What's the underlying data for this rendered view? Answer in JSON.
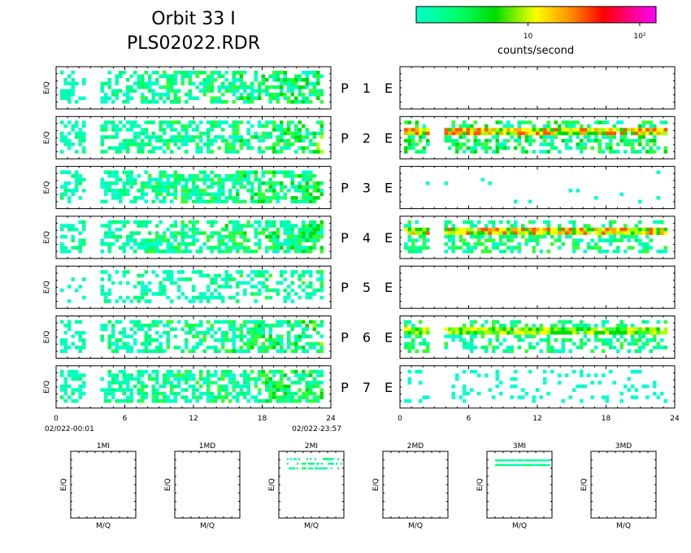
{
  "title": {
    "line1": "Orbit 33 I",
    "line2": "PLS02022.RDR"
  },
  "colorbar": {
    "label": "counts/second",
    "ticks": [
      {
        "value": 10,
        "label": "10"
      },
      {
        "value": 100,
        "label": "10²"
      }
    ],
    "range": [
      1,
      140
    ],
    "scale": "log",
    "colors": [
      "#00ffcc",
      "#00ff66",
      "#00dd00",
      "#ffff00",
      "#ff8800",
      "#ff0000",
      "#ff0077",
      "#ff00ff"
    ]
  },
  "panel_ylabel": "E/Q",
  "bottom_ylabel": "E/Q",
  "bottom_xlabel": "M/Q",
  "time_axis": {
    "ticks": [
      "0",
      "6",
      "12",
      "18",
      "24"
    ],
    "start_label": "02/022-00:01",
    "end_label": "02/022-23:57"
  },
  "chart_data": [
    {
      "type": "heatmap",
      "channel": "P",
      "number": "1",
      "left": {
        "level": 3,
        "density": 0.55,
        "band": null
      },
      "right": {
        "level": 0,
        "density": 0,
        "band": null
      }
    },
    {
      "type": "heatmap",
      "channel": "P",
      "number": "2",
      "left": {
        "level": 3,
        "density": 0.58,
        "band": null
      },
      "right": {
        "level": 6,
        "density": 0.7,
        "band": "high"
      }
    },
    {
      "type": "heatmap",
      "channel": "P",
      "number": "3",
      "left": {
        "level": 3,
        "density": 0.6,
        "band": null
      },
      "right": {
        "level": 1,
        "density": 0.02,
        "band": null
      }
    },
    {
      "type": "heatmap",
      "channel": "P",
      "number": "4",
      "left": {
        "level": 3,
        "density": 0.6,
        "band": null
      },
      "right": {
        "level": 5,
        "density": 0.6,
        "band": "high"
      }
    },
    {
      "type": "heatmap",
      "channel": "P",
      "number": "5",
      "left": {
        "level": 2,
        "density": 0.4,
        "band": null
      },
      "right": {
        "level": 0,
        "density": 0,
        "band": null
      }
    },
    {
      "type": "heatmap",
      "channel": "P",
      "number": "6",
      "left": {
        "level": 3,
        "density": 0.55,
        "band": null
      },
      "right": {
        "level": 5,
        "density": 0.6,
        "band": "mid"
      }
    },
    {
      "type": "heatmap",
      "channel": "P",
      "number": "7",
      "left": {
        "level": 3,
        "density": 0.6,
        "band": null
      },
      "right": {
        "level": 1,
        "density": 0.15,
        "band": null
      }
    }
  ],
  "channel_e": "E",
  "mass_panels": [
    {
      "label": "1MI",
      "rows": []
    },
    {
      "label": "1MD",
      "rows": []
    },
    {
      "label": "2MI",
      "rows": [
        {
          "fy": 0.1,
          "fill": 0.6
        },
        {
          "fy": 0.17,
          "fill": 0.5
        },
        {
          "fy": 0.24,
          "fill": 0.5
        }
      ]
    },
    {
      "label": "2MD",
      "rows": []
    },
    {
      "label": "3MI",
      "rows": [
        {
          "fy": 0.12,
          "fill": 1.0
        },
        {
          "fy": 0.19,
          "fill": 1.0
        }
      ]
    },
    {
      "label": "3MD",
      "rows": []
    }
  ]
}
